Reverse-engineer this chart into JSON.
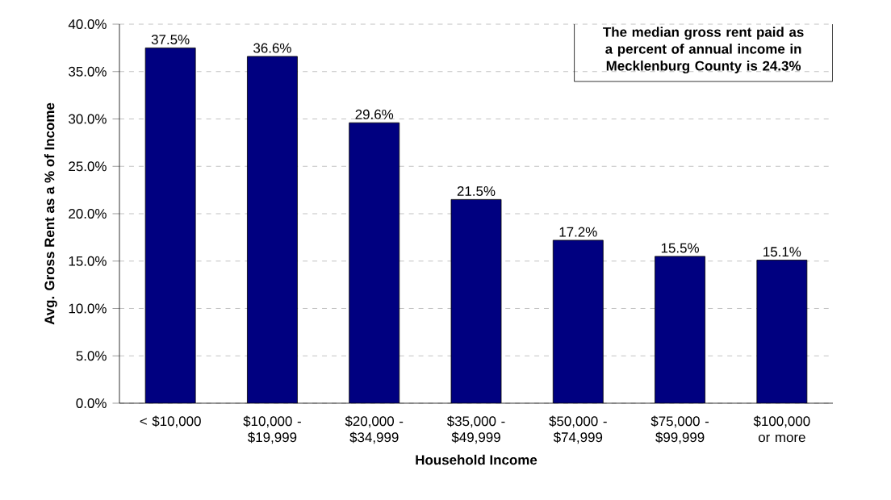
{
  "chart_data": {
    "type": "bar",
    "xlabel": "Household Income",
    "ylabel": "Avg. Gross Rent as a % of Income",
    "categories": [
      "<  $10,000",
      "$10,000 - $19,999",
      "$20,000 - $34,999",
      "$35,000 - $49,999",
      "$50,000 - $74,999",
      "$75,000 - $99,999",
      "$100,000 or more"
    ],
    "values": [
      37.5,
      36.6,
      29.6,
      21.5,
      17.2,
      15.5,
      15.1
    ],
    "value_labels": [
      "37.5%",
      "36.6%",
      "29.6%",
      "21.5%",
      "17.2%",
      "15.5%",
      "15.1%"
    ],
    "color": "#000080",
    "ylim": [
      0,
      40
    ],
    "yticks": [
      {
        "value": 0,
        "label": "0.0%"
      },
      {
        "value": 5,
        "label": "5.0%"
      },
      {
        "value": 10,
        "label": "10.0%"
      },
      {
        "value": 15,
        "label": "15.0%"
      },
      {
        "value": 20,
        "label": "20.0%"
      },
      {
        "value": 25,
        "label": "25.0%"
      },
      {
        "value": 30,
        "label": "30.0%"
      },
      {
        "value": 35,
        "label": "35.0%"
      },
      {
        "value": 40,
        "label": "40.0%"
      }
    ],
    "grid": "y",
    "annotations": [
      "The median gross rent paid as a percent of annual income in Mecklenburg County is 24.3%"
    ]
  }
}
